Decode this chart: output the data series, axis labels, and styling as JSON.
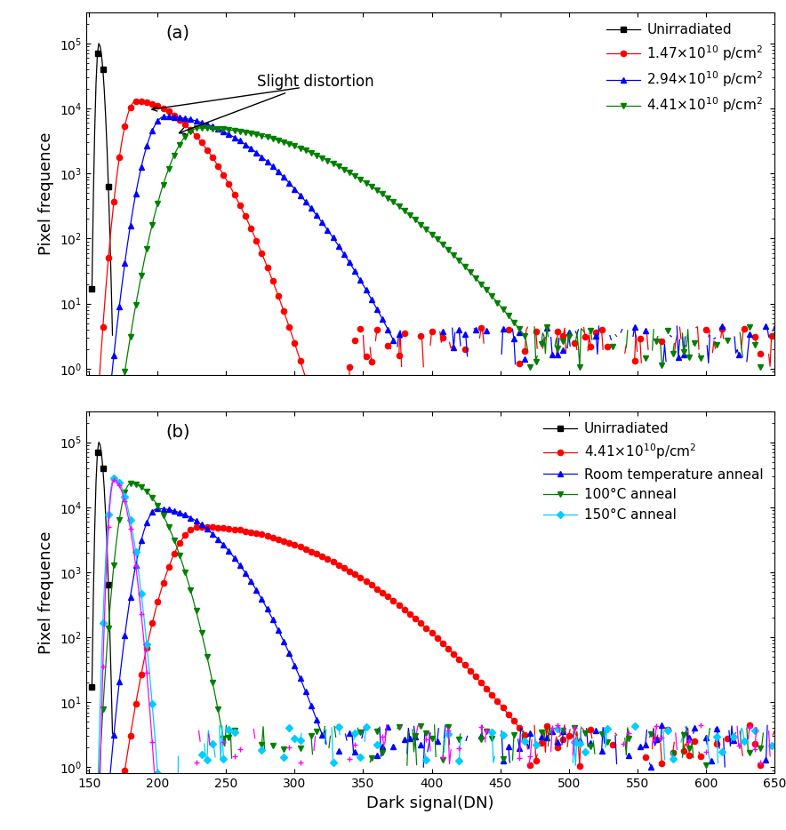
{
  "xlabel": "Dark signal(DN)",
  "ylabel": "Pixel frequence",
  "xlim": [
    148,
    650
  ],
  "legend_a": [
    "Unirradiated",
    "1.47×10$^{10}$ p/cm$^2$",
    "2.94×10$^{10}$ p/cm$^2$",
    "4.41×10$^{10}$ p/cm$^2$"
  ],
  "legend_b": [
    "Unirradiated",
    "4.41×10$^{10}$p/cm$^2$",
    "Room temperature anneal",
    "100°C anneal",
    "150°C anneal"
  ],
  "annotation_text": "Slight distortion",
  "label_a": "(a)",
  "label_b": "(b)"
}
